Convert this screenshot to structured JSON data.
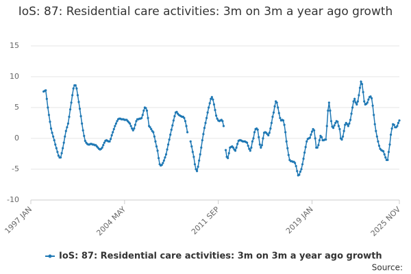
{
  "chart_data": {
    "type": "line",
    "title": "IoS: 87: Residential care activities: 3m on 3m a year ago growth",
    "source_label": "Source:",
    "x": [
      "1997 JAN",
      "1997 FEB",
      "1997 MAR",
      "1997 APR",
      "1997 MAY",
      "1997 JUN",
      "1997 JUL",
      "1997 AUG",
      "1997 SEP",
      "1997 OCT",
      "1997 NOV",
      "1997 DEC",
      "1998 JAN",
      "1998 FEB",
      "1998 MAR",
      "1998 APR",
      "1998 MAY",
      "1998 JUN",
      "1998 JUL",
      "1998 AUG",
      "1998 SEP",
      "1998 OCT",
      "1998 NOV",
      "1998 DEC",
      "1999 JAN",
      "1999 FEB",
      "1999 MAR",
      "1999 APR",
      "1999 MAY",
      "1999 JUN",
      "1999 JUL",
      "1999 AUG",
      "1999 SEP",
      "1999 OCT",
      "1999 NOV",
      "1999 DEC",
      "2000 JAN",
      "2000 FEB",
      "2000 MAR",
      "2000 APR",
      "2000 MAY",
      "2000 JUN",
      "2000 JUL",
      "2000 AUG",
      "2000 SEP",
      "2000 OCT",
      "2000 NOV",
      "2000 DEC",
      "2001 JAN",
      "2001 FEB",
      "2001 MAR",
      "2001 APR",
      "2001 MAY",
      "2001 JUN",
      "2001 JUL",
      "2001 AUG",
      "2001 SEP",
      "2001 OCT",
      "2001 NOV",
      "2001 DEC",
      "2002 JAN",
      "2002 FEB",
      "2002 MAR",
      "2002 APR",
      "2002 MAY",
      "2002 JUN",
      "2002 JUL",
      "2002 AUG",
      "2002 SEP",
      "2002 OCT",
      "2002 NOV",
      "2002 DEC",
      "2003 JAN",
      "2003 FEB",
      "2003 MAR",
      "2003 APR",
      "2003 MAY",
      "2003 JUN",
      "2003 JUL",
      "2003 AUG",
      "2003 SEP",
      "2003 OCT",
      "2003 NOV",
      "2003 DEC",
      "2004 JAN",
      "2004 FEB",
      "2004 MAR",
      "2004 APR",
      "2004 MAY",
      "2004 JUN",
      "2004 JUL",
      "2004 AUG",
      "2004 SEP",
      "2004 OCT",
      "2004 NOV",
      "2004 DEC",
      "2005 JAN",
      "2005 FEB",
      "2005 MAR",
      "2005 APR",
      "2005 MAY",
      "2005 JUN",
      "2005 JUL",
      "2005 AUG",
      "2005 SEP",
      "2005 OCT",
      "2005 NOV",
      "2005 DEC",
      "2006 JAN",
      "2006 FEB",
      "2006 MAR",
      "2006 APR",
      "2006 MAY",
      "2006 JUN",
      "2006 JUL",
      "2006 AUG",
      "2006 SEP",
      "2006 OCT",
      "2006 NOV",
      "2006 DEC",
      "2007 JAN",
      "2007 FEB",
      "2007 MAR",
      "2007 APR",
      "2007 MAY",
      "2007 JUN",
      "2007 JUL",
      "2007 AUG",
      "2007 SEP",
      "2007 OCT",
      "2007 NOV",
      "2007 DEC",
      "2008 JAN",
      "2008 FEB",
      "2008 MAR",
      "2008 APR",
      "2008 MAY",
      "2008 JUN",
      "2008 JUL",
      "2008 AUG",
      "2008 SEP",
      "2008 OCT",
      "2008 NOV",
      "2008 DEC",
      "2009 JAN",
      "2009 FEB",
      "2009 MAR",
      "2009 APR",
      "2009 MAY",
      "2009 JUN",
      "2009 JUL",
      "2009 AUG",
      "2009 SEP",
      "2009 OCT",
      "2009 NOV",
      "2009 DEC",
      "2010 JAN",
      "2010 FEB",
      "2010 MAR",
      "2010 APR",
      "2010 MAY",
      "2010 JUN",
      "2010 JUL",
      "2010 AUG",
      "2010 SEP",
      "2010 OCT",
      "2010 NOV",
      "2010 DEC",
      "2011 JAN",
      "2011 FEB",
      "2011 MAR",
      "2011 APR",
      "2011 MAY",
      "2011 JUN",
      "2011 JUL",
      "2011 AUG",
      "2011 SEP",
      "2011 OCT",
      "2011 NOV",
      "2011 DEC",
      "2012 JAN",
      "2012 FEB",
      "2012 MAR",
      "2012 APR",
      "2012 MAY",
      "2012 JUN",
      "2012 JUL",
      "2012 AUG",
      "2012 SEP",
      "2012 OCT",
      "2012 NOV",
      "2012 DEC",
      "2013 JAN",
      "2013 FEB",
      "2013 MAR",
      "2013 APR",
      "2013 MAY",
      "2013 JUN",
      "2013 JUL",
      "2013 AUG",
      "2013 SEP",
      "2013 OCT",
      "2013 NOV",
      "2013 DEC",
      "2014 JAN",
      "2014 FEB",
      "2014 MAR",
      "2014 APR",
      "2014 MAY",
      "2014 JUN",
      "2014 JUL",
      "2014 AUG",
      "2014 SEP",
      "2014 OCT",
      "2014 NOV",
      "2014 DEC",
      "2015 JAN",
      "2015 FEB",
      "2015 MAR",
      "2015 APR",
      "2015 MAY",
      "2015 JUN",
      "2015 JUL",
      "2015 AUG",
      "2015 SEP",
      "2015 OCT",
      "2015 NOV",
      "2015 DEC",
      "2016 JAN",
      "2016 FEB",
      "2016 MAR",
      "2016 APR",
      "2016 MAY",
      "2016 JUN",
      "2016 JUL",
      "2016 AUG",
      "2016 SEP",
      "2016 OCT",
      "2016 NOV",
      "2016 DEC",
      "2017 JAN",
      "2017 FEB",
      "2017 MAR",
      "2017 APR",
      "2017 MAY",
      "2017 JUN",
      "2017 JUL",
      "2017 AUG",
      "2017 SEP",
      "2017 OCT",
      "2017 NOV",
      "2017 DEC",
      "2018 JAN",
      "2018 FEB",
      "2018 MAR",
      "2018 APR",
      "2018 MAY",
      "2018 JUN",
      "2018 JUL",
      "2018 AUG",
      "2018 SEP",
      "2018 OCT",
      "2018 NOV",
      "2018 DEC",
      "2019 JAN",
      "2019 FEB",
      "2019 MAR",
      "2019 APR",
      "2019 MAY",
      "2019 JUN",
      "2019 JUL",
      "2019 AUG",
      "2019 SEP",
      "2019 OCT",
      "2019 NOV",
      "2019 DEC",
      "2020 JAN",
      "2020 FEB",
      "2020 MAR",
      "2020 APR",
      "2020 MAY",
      "2020 JUN",
      "2020 JUL",
      "2020 AUG",
      "2020 SEP",
      "2020 OCT",
      "2020 NOV",
      "2020 DEC",
      "2021 JAN",
      "2021 FEB",
      "2021 MAR",
      "2021 APR",
      "2021 MAY",
      "2021 JUN",
      "2021 JUL",
      "2021 AUG",
      "2021 SEP",
      "2021 OCT",
      "2021 NOV",
      "2021 DEC",
      "2022 JAN",
      "2022 FEB",
      "2022 MAR",
      "2022 APR",
      "2022 MAY",
      "2022 JUN",
      "2022 JUL",
      "2022 AUG",
      "2022 SEP",
      "2022 OCT",
      "2022 NOV",
      "2022 DEC",
      "2023 JAN",
      "2023 FEB",
      "2023 MAR",
      "2023 APR",
      "2023 MAY",
      "2023 JUN",
      "2023 JUL",
      "2023 AUG",
      "2023 SEP",
      "2023 OCT",
      "2023 NOV",
      "2023 DEC",
      "2024 JAN",
      "2024 FEB",
      "2024 MAR",
      "2024 APR",
      "2024 MAY",
      "2024 JUN",
      "2024 JUL",
      "2024 AUG",
      "2024 SEP",
      "2024 OCT",
      "2024 NOV",
      "2024 DEC",
      "2025 JAN",
      "2025 FEB",
      "2025 MAR",
      "2025 APR",
      "2025 MAY",
      "2025 JUN",
      "2025 JUL",
      "2025 AUG",
      "2025 SEP",
      "2025 OCT",
      "2025 NOV"
    ],
    "series": [
      {
        "name": "IoS: 87: Residential care activities: 3m on 3m a year ago growth",
        "color": "#1f78b4",
        "values": [
          null,
          null,
          null,
          null,
          null,
          null,
          null,
          null,
          null,
          null,
          null,
          null,
          7.6,
          7.7,
          7.8,
          6.4,
          5.0,
          3.8,
          2.7,
          1.6,
          0.9,
          0.3,
          -0.3,
          -1.0,
          -1.6,
          -2.2,
          -2.8,
          -3.1,
          -3.1,
          -2.4,
          -1.6,
          -0.7,
          0.3,
          1.2,
          1.8,
          2.4,
          3.5,
          4.7,
          5.8,
          7.0,
          8.1,
          8.6,
          8.6,
          8.1,
          7.0,
          5.9,
          4.8,
          3.6,
          2.4,
          1.3,
          0.4,
          -0.4,
          -0.7,
          -0.9,
          -1.0,
          -1.0,
          -0.9,
          -0.9,
          -1.0,
          -1.0,
          -1.1,
          -1.1,
          -1.3,
          -1.5,
          -1.7,
          -1.8,
          -1.7,
          -1.5,
          -1.1,
          -0.7,
          -0.4,
          -0.3,
          -0.4,
          -0.5,
          -0.5,
          -0.1,
          0.5,
          1.0,
          1.5,
          2.0,
          2.4,
          2.8,
          3.1,
          3.2,
          3.2,
          3.1,
          3.1,
          3.1,
          3.0,
          3.0,
          3.0,
          2.8,
          2.6,
          2.4,
          2.0,
          1.6,
          1.3,
          1.6,
          2.2,
          2.8,
          3.1,
          3.1,
          3.2,
          3.2,
          3.3,
          3.8,
          4.5,
          5.0,
          4.9,
          4.5,
          3.3,
          2.0,
          1.8,
          1.5,
          1.2,
          1.0,
          0.3,
          -0.5,
          -1.3,
          -2.0,
          -3.2,
          -4.2,
          -4.4,
          -4.3,
          -4.0,
          -3.6,
          -3.1,
          -2.6,
          -1.8,
          -1.0,
          -0.2,
          0.6,
          1.4,
          2.1,
          2.9,
          3.6,
          4.2,
          4.3,
          4.0,
          3.8,
          3.7,
          3.6,
          3.5,
          3.5,
          3.3,
          2.8,
          2.0,
          1.0,
          null,
          null,
          -0.5,
          -1.3,
          -2.2,
          -3.0,
          -4.2,
          -5.0,
          -5.3,
          -4.6,
          -3.6,
          -2.6,
          -1.5,
          -0.3,
          0.7,
          1.7,
          2.5,
          3.3,
          4.2,
          5.0,
          5.7,
          6.4,
          6.7,
          6.3,
          5.5,
          4.6,
          3.7,
          3.2,
          2.9,
          2.8,
          2.9,
          3.0,
          2.8,
          2.0,
          null,
          -1.9,
          -3.0,
          -3.2,
          -2.4,
          -1.5,
          -1.4,
          -1.3,
          -1.5,
          -1.8,
          -2.0,
          -1.5,
          -0.9,
          -0.4,
          -0.3,
          -0.3,
          -0.4,
          -0.5,
          -0.5,
          -0.5,
          -0.6,
          -0.7,
          -1.2,
          -1.7,
          -2.0,
          -1.5,
          -0.5,
          0.0,
          1.0,
          1.5,
          1.6,
          1.4,
          0.2,
          -1.0,
          -1.5,
          -1.1,
          0.0,
          0.9,
          1.0,
          0.9,
          0.7,
          0.5,
          0.9,
          1.6,
          2.5,
          3.5,
          4.2,
          5.2,
          6.0,
          5.8,
          5.0,
          4.1,
          3.3,
          2.9,
          3.0,
          2.9,
          2.2,
          1.0,
          -0.5,
          -1.6,
          -2.7,
          -3.5,
          -3.7,
          -3.7,
          -3.8,
          -3.8,
          -4.0,
          -4.5,
          -5.3,
          -6.0,
          -5.9,
          -5.4,
          -5.0,
          -4.2,
          -3.3,
          -2.3,
          -1.4,
          -0.5,
          -0.1,
          0.0,
          0.1,
          0.6,
          1.1,
          1.5,
          1.3,
          0.0,
          -1.5,
          -1.5,
          -1.1,
          -0.3,
          0.4,
          0.2,
          -0.3,
          -0.3,
          -0.2,
          -0.2,
          2.0,
          4.5,
          5.8,
          4.5,
          2.8,
          1.9,
          1.7,
          2.1,
          2.5,
          2.8,
          2.7,
          2.0,
          1.5,
          0.0,
          -0.2,
          0.3,
          1.2,
          2.2,
          2.5,
          2.3,
          2.0,
          2.4,
          3.0,
          4.0,
          5.0,
          6.0,
          6.4,
          5.8,
          5.5,
          6.0,
          7.0,
          8.2,
          9.2,
          8.8,
          7.5,
          6.0,
          5.5,
          5.6,
          5.8,
          6.3,
          6.7,
          6.8,
          6.5,
          5.3,
          3.8,
          2.3,
          1.2,
          0.3,
          -0.5,
          -1.2,
          -1.7,
          -1.9,
          -2.0,
          -2.1,
          -2.6,
          -3.1,
          -3.5,
          -3.5,
          -2.2,
          -1.0,
          0.6,
          1.6,
          2.3,
          2.2,
          1.8,
          1.8,
          2.0,
          2.5,
          2.9
        ]
      }
    ],
    "xlim": [
      "1997 JAN",
      "2025 NOV"
    ],
    "xticks": [
      "1997 JAN",
      "2004 MAY",
      "2011 SEP",
      "2019 JAN",
      "2025 NOV"
    ],
    "ylim": [
      -10,
      15
    ],
    "yticks": [
      -10,
      -5,
      0,
      5,
      10,
      15
    ],
    "grid": true,
    "legend": "bottom"
  }
}
